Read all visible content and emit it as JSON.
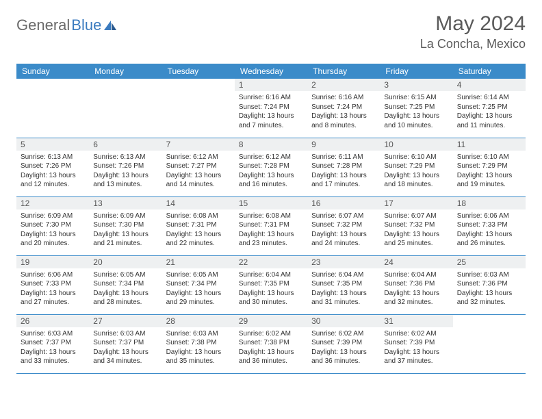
{
  "logo": {
    "text1": "General",
    "text2": "Blue"
  },
  "header": {
    "month": "May 2024",
    "location": "La Concha, Mexico"
  },
  "dayNames": [
    "Sunday",
    "Monday",
    "Tuesday",
    "Wednesday",
    "Thursday",
    "Friday",
    "Saturday"
  ],
  "colors": {
    "headerBlue": "#3b8bc9",
    "dayNumBg": "#eef0f1",
    "borderBlue": "#3b8bc9",
    "logoBlue": "#3b7bbf",
    "textGray": "#5a5a5a"
  },
  "weeks": [
    [
      null,
      null,
      null,
      {
        "n": "1",
        "sr": "6:16 AM",
        "ss": "7:24 PM",
        "dl": "13 hours and 7 minutes."
      },
      {
        "n": "2",
        "sr": "6:16 AM",
        "ss": "7:24 PM",
        "dl": "13 hours and 8 minutes."
      },
      {
        "n": "3",
        "sr": "6:15 AM",
        "ss": "7:25 PM",
        "dl": "13 hours and 10 minutes."
      },
      {
        "n": "4",
        "sr": "6:14 AM",
        "ss": "7:25 PM",
        "dl": "13 hours and 11 minutes."
      }
    ],
    [
      {
        "n": "5",
        "sr": "6:13 AM",
        "ss": "7:26 PM",
        "dl": "13 hours and 12 minutes."
      },
      {
        "n": "6",
        "sr": "6:13 AM",
        "ss": "7:26 PM",
        "dl": "13 hours and 13 minutes."
      },
      {
        "n": "7",
        "sr": "6:12 AM",
        "ss": "7:27 PM",
        "dl": "13 hours and 14 minutes."
      },
      {
        "n": "8",
        "sr": "6:12 AM",
        "ss": "7:28 PM",
        "dl": "13 hours and 16 minutes."
      },
      {
        "n": "9",
        "sr": "6:11 AM",
        "ss": "7:28 PM",
        "dl": "13 hours and 17 minutes."
      },
      {
        "n": "10",
        "sr": "6:10 AM",
        "ss": "7:29 PM",
        "dl": "13 hours and 18 minutes."
      },
      {
        "n": "11",
        "sr": "6:10 AM",
        "ss": "7:29 PM",
        "dl": "13 hours and 19 minutes."
      }
    ],
    [
      {
        "n": "12",
        "sr": "6:09 AM",
        "ss": "7:30 PM",
        "dl": "13 hours and 20 minutes."
      },
      {
        "n": "13",
        "sr": "6:09 AM",
        "ss": "7:30 PM",
        "dl": "13 hours and 21 minutes."
      },
      {
        "n": "14",
        "sr": "6:08 AM",
        "ss": "7:31 PM",
        "dl": "13 hours and 22 minutes."
      },
      {
        "n": "15",
        "sr": "6:08 AM",
        "ss": "7:31 PM",
        "dl": "13 hours and 23 minutes."
      },
      {
        "n": "16",
        "sr": "6:07 AM",
        "ss": "7:32 PM",
        "dl": "13 hours and 24 minutes."
      },
      {
        "n": "17",
        "sr": "6:07 AM",
        "ss": "7:32 PM",
        "dl": "13 hours and 25 minutes."
      },
      {
        "n": "18",
        "sr": "6:06 AM",
        "ss": "7:33 PM",
        "dl": "13 hours and 26 minutes."
      }
    ],
    [
      {
        "n": "19",
        "sr": "6:06 AM",
        "ss": "7:33 PM",
        "dl": "13 hours and 27 minutes."
      },
      {
        "n": "20",
        "sr": "6:05 AM",
        "ss": "7:34 PM",
        "dl": "13 hours and 28 minutes."
      },
      {
        "n": "21",
        "sr": "6:05 AM",
        "ss": "7:34 PM",
        "dl": "13 hours and 29 minutes."
      },
      {
        "n": "22",
        "sr": "6:04 AM",
        "ss": "7:35 PM",
        "dl": "13 hours and 30 minutes."
      },
      {
        "n": "23",
        "sr": "6:04 AM",
        "ss": "7:35 PM",
        "dl": "13 hours and 31 minutes."
      },
      {
        "n": "24",
        "sr": "6:04 AM",
        "ss": "7:36 PM",
        "dl": "13 hours and 32 minutes."
      },
      {
        "n": "25",
        "sr": "6:03 AM",
        "ss": "7:36 PM",
        "dl": "13 hours and 32 minutes."
      }
    ],
    [
      {
        "n": "26",
        "sr": "6:03 AM",
        "ss": "7:37 PM",
        "dl": "13 hours and 33 minutes."
      },
      {
        "n": "27",
        "sr": "6:03 AM",
        "ss": "7:37 PM",
        "dl": "13 hours and 34 minutes."
      },
      {
        "n": "28",
        "sr": "6:03 AM",
        "ss": "7:38 PM",
        "dl": "13 hours and 35 minutes."
      },
      {
        "n": "29",
        "sr": "6:02 AM",
        "ss": "7:38 PM",
        "dl": "13 hours and 36 minutes."
      },
      {
        "n": "30",
        "sr": "6:02 AM",
        "ss": "7:39 PM",
        "dl": "13 hours and 36 minutes."
      },
      {
        "n": "31",
        "sr": "6:02 AM",
        "ss": "7:39 PM",
        "dl": "13 hours and 37 minutes."
      },
      null
    ]
  ],
  "labels": {
    "sunrise": "Sunrise:",
    "sunset": "Sunset:",
    "daylight": "Daylight:"
  }
}
